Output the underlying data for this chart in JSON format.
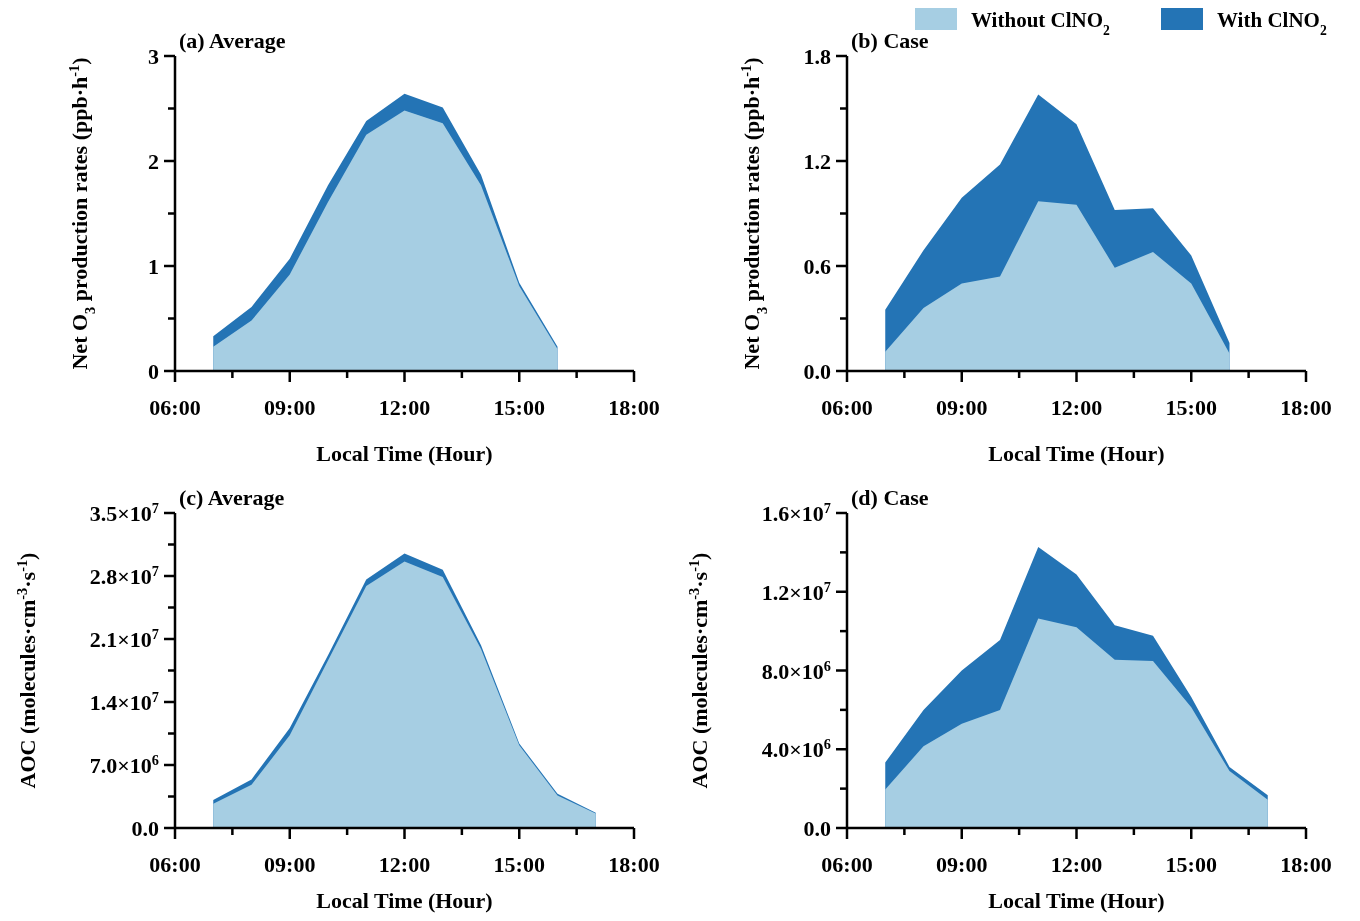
{
  "chart_data": [
    {
      "type": "area",
      "title": "(a) Average",
      "xlabel": "Local Time (Hour)",
      "ylabel": "Net O$_{3}$ production rates (ppb·h$^{-1}$)",
      "x": [
        7,
        8,
        9,
        10,
        11,
        12,
        13,
        14,
        15,
        16
      ],
      "series": [
        {
          "color": "#a6cee3",
          "values": [
            0.23,
            0.48,
            0.92,
            1.61,
            2.25,
            2.48,
            2.36,
            1.77,
            0.81,
            0.21
          ]
        },
        {
          "color": "#2474b5",
          "values": [
            0.33,
            0.61,
            1.07,
            1.77,
            2.38,
            2.64,
            2.51,
            1.87,
            0.84,
            0.23
          ]
        }
      ],
      "xlim": [
        6,
        18
      ],
      "xticks": [
        {
          "value": 6,
          "label": "06:00"
        },
        {
          "value": 7.5,
          "label": null
        },
        {
          "value": 9,
          "label": "09:00"
        },
        {
          "value": 10.5,
          "label": null
        },
        {
          "value": 12,
          "label": "12:00"
        },
        {
          "value": 13.5,
          "label": null
        },
        {
          "value": 15,
          "label": "15:00"
        },
        {
          "value": 16.5,
          "label": null
        },
        {
          "value": 18,
          "label": "18:00"
        }
      ],
      "ylim": [
        0,
        3
      ],
      "yticks": [
        0,
        {
          "value": 0.5,
          "label": null
        },
        1,
        {
          "value": 1.5,
          "label": null
        },
        2,
        {
          "value": 2.5,
          "label": null
        },
        3
      ],
      "grid": false,
      "legend": false
    },
    {
      "type": "area",
      "title": "(b) Case",
      "xlabel": "Local Time (Hour)",
      "ylabel": "Net O$_{3}$ production rates (ppb·h$^{-1}$)",
      "x": [
        7,
        8,
        9,
        10,
        11,
        12,
        13,
        14,
        15,
        16
      ],
      "series": [
        {
          "name": "Without ClNO$_{2}$",
          "color": "#a6cee3",
          "values": [
            0.11,
            0.36,
            0.5,
            0.54,
            0.97,
            0.95,
            0.59,
            0.68,
            0.5,
            0.1
          ]
        },
        {
          "name": "With ClNO$_{2}$",
          "color": "#2474b5",
          "values": [
            0.35,
            0.69,
            0.99,
            1.18,
            1.58,
            1.41,
            0.92,
            0.93,
            0.66,
            0.16
          ]
        }
      ],
      "xlim": [
        6,
        18
      ],
      "xticks": [
        {
          "value": 6,
          "label": "06:00"
        },
        {
          "value": 7.5,
          "label": null
        },
        {
          "value": 9,
          "label": "09:00"
        },
        {
          "value": 10.5,
          "label": null
        },
        {
          "value": 12,
          "label": "12:00"
        },
        {
          "value": 13.5,
          "label": null
        },
        {
          "value": 15,
          "label": "15:00"
        },
        {
          "value": 16.5,
          "label": null
        },
        {
          "value": 18,
          "label": "18:00"
        }
      ],
      "ylim": [
        0,
        1.8
      ],
      "yticks": [
        {
          "value": 0,
          "label": "0.0"
        },
        {
          "value": 0.3,
          "label": null
        },
        0.6,
        {
          "value": 0.9,
          "label": null
        },
        1.2,
        {
          "value": 1.5,
          "label": null
        },
        1.8
      ],
      "grid": false,
      "legend": "top right"
    },
    {
      "type": "area",
      "title": "(c) Average",
      "xlabel": "Local Time (Hour)",
      "ylabel": "AOC (molecules·cm$^{-3}$·s$^{-1}$)",
      "x": [
        7,
        8,
        9,
        10,
        11,
        12,
        13,
        14,
        15,
        16,
        17
      ],
      "series": [
        {
          "color": "#a6cee3",
          "values": [
            2700000,
            4800000,
            10300000,
            18600000,
            26900000,
            29600000,
            27900000,
            19900000,
            9200000,
            3600000,
            1600000
          ]
        },
        {
          "color": "#2474b5",
          "values": [
            3100000,
            5400000,
            11100000,
            19200000,
            27600000,
            30500000,
            28700000,
            20300000,
            9400000,
            3800000,
            1700000
          ]
        }
      ],
      "xlim": [
        6,
        18
      ],
      "xticks": [
        {
          "value": 6,
          "label": "06:00"
        },
        {
          "value": 7.5,
          "label": null
        },
        {
          "value": 9,
          "label": "09:00"
        },
        {
          "value": 10.5,
          "label": null
        },
        {
          "value": 12,
          "label": "12:00"
        },
        {
          "value": 13.5,
          "label": null
        },
        {
          "value": 15,
          "label": "15:00"
        },
        {
          "value": 16.5,
          "label": null
        },
        {
          "value": 18,
          "label": "18:00"
        }
      ],
      "ylim": [
        0,
        35000000
      ],
      "yticks": [
        {
          "value": 0,
          "label": "0.0"
        },
        {
          "value": 3500000,
          "label": null
        },
        {
          "value": 7000000,
          "label": "7.0×10$^{6}$"
        },
        {
          "value": 10500000,
          "label": null
        },
        {
          "value": 14000000,
          "label": "1.4×10$^{7}$"
        },
        {
          "value": 17500000,
          "label": null
        },
        {
          "value": 21000000,
          "label": "2.1×10$^{7}$"
        },
        {
          "value": 24500000,
          "label": null
        },
        {
          "value": 28000000,
          "label": "2.8×10$^{7}$"
        },
        {
          "value": 31500000,
          "label": null
        },
        {
          "value": 35000000,
          "label": "3.5×10$^{7}$"
        }
      ],
      "grid": false,
      "legend": false
    },
    {
      "type": "area",
      "title": "(d) Case",
      "xlabel": "Local Time (Hour)",
      "ylabel": "AOC (molecules·cm$^{-3}$·s$^{-1}$)",
      "x": [
        7,
        8,
        9,
        10,
        11,
        12,
        13,
        14,
        15,
        16,
        17
      ],
      "series": [
        {
          "color": "#a6cee3",
          "values": [
            1960000,
            4150000,
            5300000,
            5990000,
            10640000,
            10200000,
            8550000,
            8480000,
            6130000,
            2890000,
            1440000
          ]
        },
        {
          "color": "#2474b5",
          "values": [
            3330000,
            6000000,
            8000000,
            9550000,
            14270000,
            12880000,
            10300000,
            9760000,
            6660000,
            3100000,
            1660000
          ]
        }
      ],
      "xlim": [
        6,
        18
      ],
      "xticks": [
        {
          "value": 6,
          "label": "06:00"
        },
        {
          "value": 7.5,
          "label": null
        },
        {
          "value": 9,
          "label": "09:00"
        },
        {
          "value": 10.5,
          "label": null
        },
        {
          "value": 12,
          "label": "12:00"
        },
        {
          "value": 13.5,
          "label": null
        },
        {
          "value": 15,
          "label": "15:00"
        },
        {
          "value": 16.5,
          "label": null
        },
        {
          "value": 18,
          "label": "18:00"
        }
      ],
      "ylim": [
        0,
        16000000
      ],
      "yticks": [
        {
          "value": 0,
          "label": "0.0"
        },
        {
          "value": 2000000,
          "label": null
        },
        {
          "value": 4000000,
          "label": "4.0×10$^{6}$"
        },
        {
          "value": 6000000,
          "label": null
        },
        {
          "value": 8000000,
          "label": "8.0×10$^{6}$"
        },
        {
          "value": 10000000,
          "label": null
        },
        {
          "value": 12000000,
          "label": "1.2×10$^{7}$"
        },
        {
          "value": 14000000,
          "label": null
        },
        {
          "value": 16000000,
          "label": "1.6×10$^{7}$"
        }
      ],
      "grid": false,
      "legend": false
    }
  ]
}
